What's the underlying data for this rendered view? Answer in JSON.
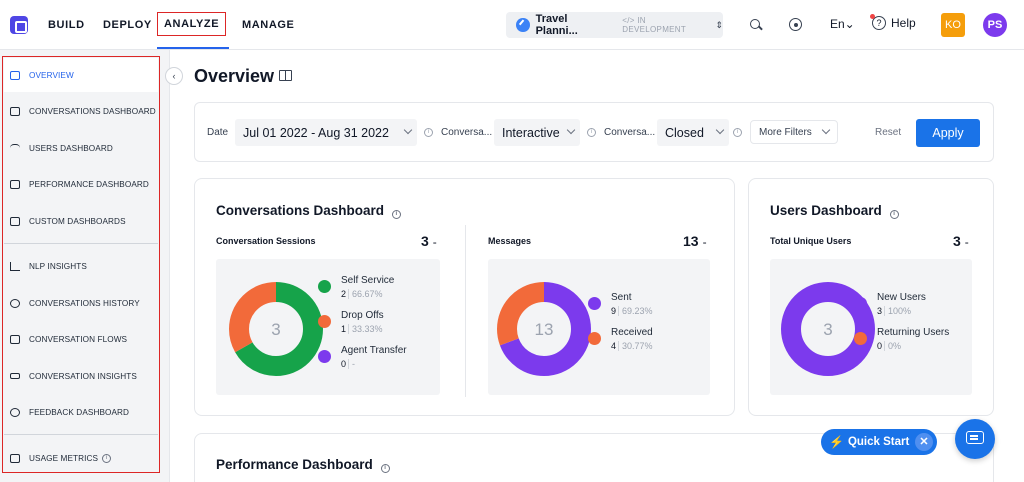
{
  "topbar": {
    "nav": [
      "BUILD",
      "DEPLOY",
      "ANALYZE",
      "MANAGE"
    ],
    "bot_name": "Travel Planni...",
    "dev_tag": "</> IN DEVELOPMENT",
    "lang": "En⌄",
    "help": "Help",
    "avatar1": "KO",
    "avatar2": "PS"
  },
  "sidebar": {
    "items": [
      {
        "label": "OVERVIEW",
        "icon": "layout-icon"
      },
      {
        "label": "CONVERSATIONS DASHBOARD",
        "icon": "chat-icon"
      },
      {
        "label": "USERS DASHBOARD",
        "icon": "users-icon"
      },
      {
        "label": "PERFORMANCE DASHBOARD",
        "icon": "monitor-icon"
      },
      {
        "label": "CUSTOM DASHBOARDS",
        "icon": "grid-icon"
      },
      {
        "label": "NLP INSIGHTS",
        "icon": "bar-chart-icon"
      },
      {
        "label": "CONVERSATIONS HISTORY",
        "icon": "history-icon"
      },
      {
        "label": "CONVERSATION FLOWS",
        "icon": "flow-icon"
      },
      {
        "label": "CONVERSATION INSIGHTS",
        "icon": "insight-icon"
      },
      {
        "label": "FEEDBACK DASHBOARD",
        "icon": "smile-icon"
      },
      {
        "label": "USAGE METRICS",
        "icon": "metrics-icon"
      }
    ]
  },
  "page": {
    "title": "Overview"
  },
  "filters": {
    "date_label": "Date",
    "date_value": "Jul 01 2022 - Aug 31 2022",
    "conv1_label": "Conversa...",
    "conv1_value": "Interactive",
    "conv2_label": "Conversa...",
    "conv2_value": "Closed",
    "more_filters": "More Filters",
    "reset": "Reset",
    "apply": "Apply"
  },
  "conversations": {
    "title": "Conversations Dashboard",
    "sessions_label": "Conversation Sessions",
    "sessions_total": "3",
    "messages_label": "Messages",
    "messages_total": "13",
    "sessions_center": "3",
    "messages_center": "13"
  },
  "users": {
    "title": "Users Dashboard",
    "total_label": "Total Unique Users",
    "total": "3",
    "center": "3"
  },
  "performance": {
    "title": "Performance Dashboard"
  },
  "quick_start": "Quick Start",
  "chart_data": [
    {
      "type": "pie",
      "title": "Conversation Sessions",
      "categories": [
        "Self Service",
        "Drop Offs",
        "Agent Transfer"
      ],
      "values": [
        2,
        1,
        0
      ],
      "percent_labels": [
        "66.67%",
        "33.33%",
        "-"
      ],
      "colors": [
        "#16a34a",
        "#f26a3a",
        "#7c3aed"
      ]
    },
    {
      "type": "pie",
      "title": "Messages",
      "categories": [
        "Sent",
        "Received"
      ],
      "values": [
        9,
        4
      ],
      "percent_labels": [
        "69.23%",
        "30.77%"
      ],
      "colors": [
        "#7c3aed",
        "#f26a3a"
      ]
    },
    {
      "type": "pie",
      "title": "Total Unique Users",
      "categories": [
        "New Users",
        "Returning Users"
      ],
      "values": [
        3,
        0
      ],
      "percent_labels": [
        "100%",
        "0%"
      ],
      "colors": [
        "#7c3aed",
        "#f26a3a"
      ]
    }
  ]
}
